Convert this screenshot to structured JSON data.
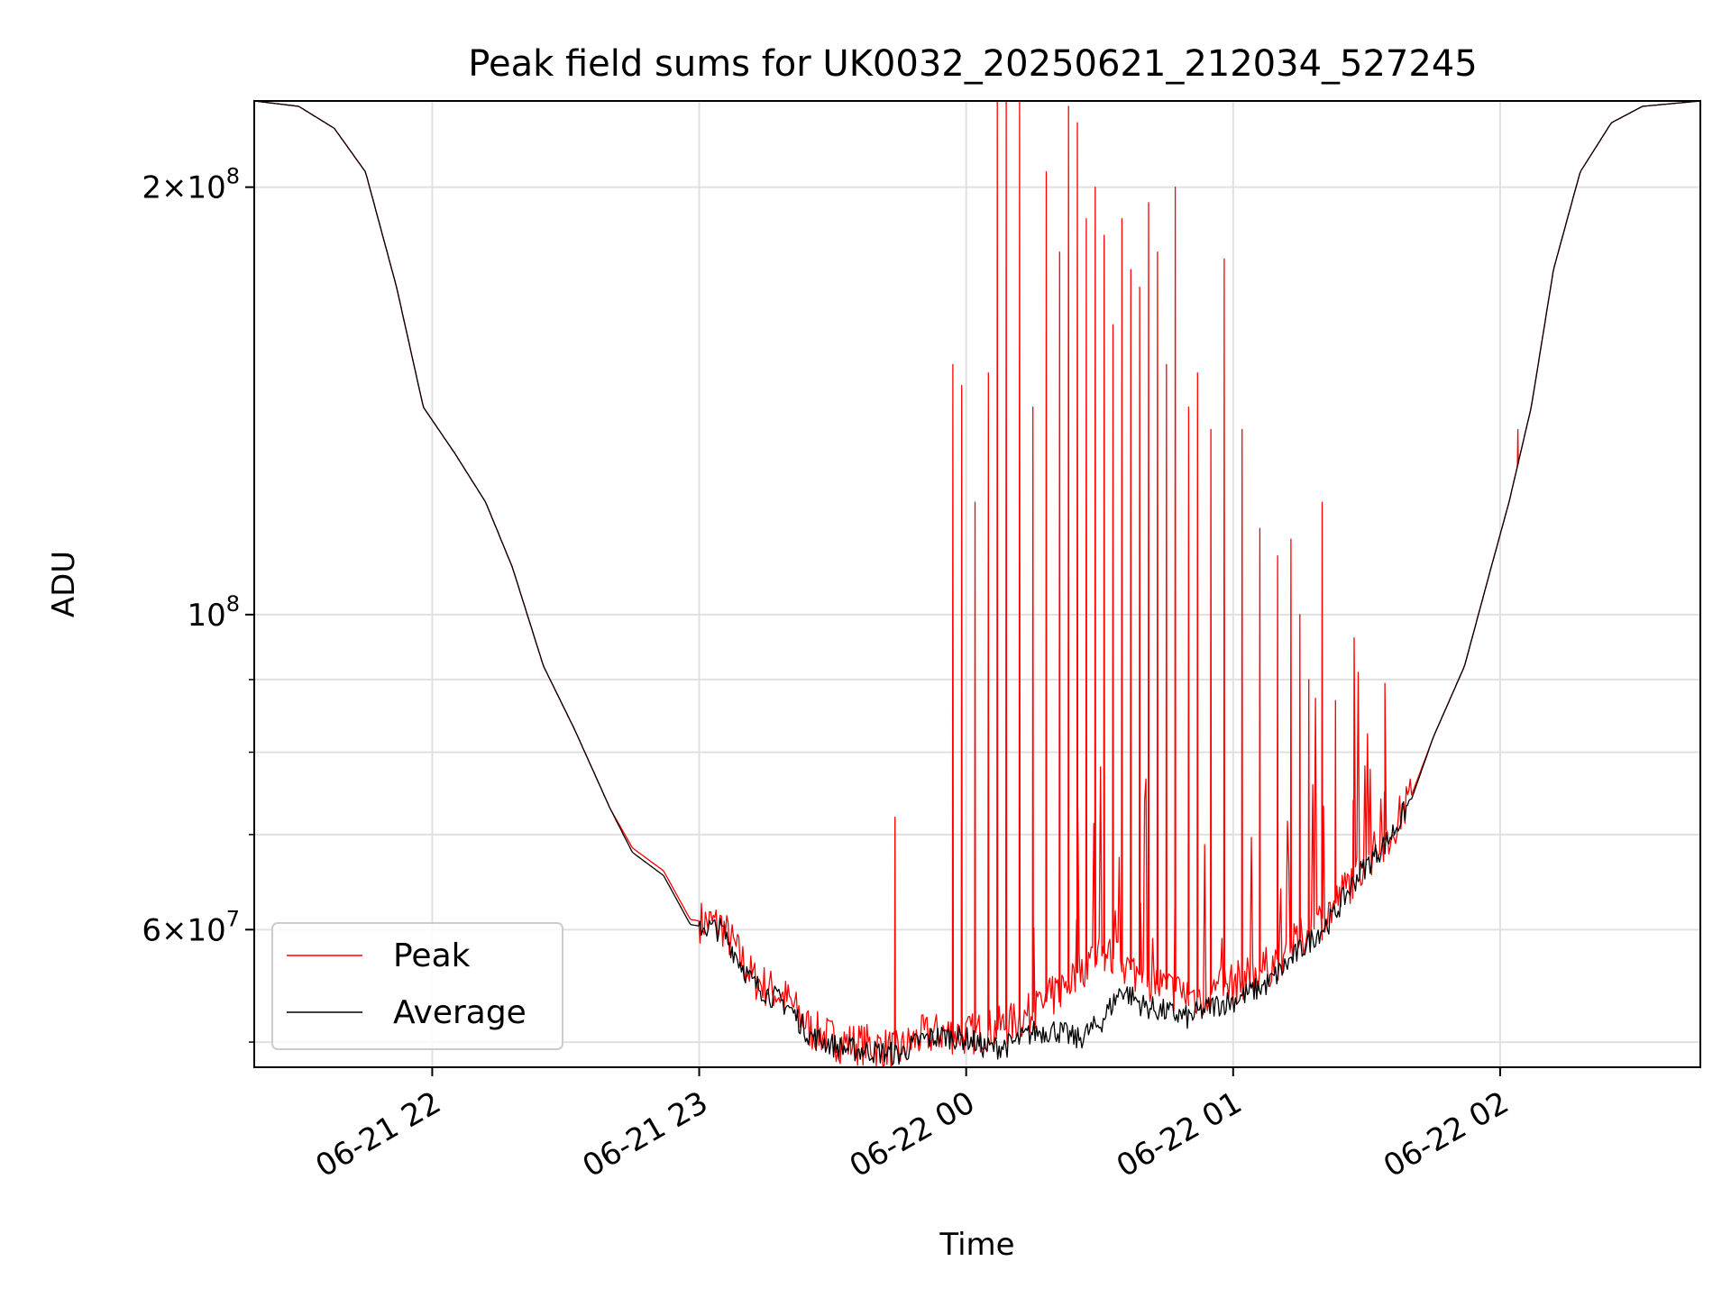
{
  "chart_data": {
    "type": "line",
    "title": "Peak field sums for UK0032_20250621_212034_527245",
    "xlabel": "Time",
    "ylabel": "ADU",
    "x_axis": {
      "type": "time",
      "range": [
        "2025-06-21 21:20",
        "2025-06-22 02:45"
      ],
      "ticks": [
        {
          "value": "2025-06-21 22:00",
          "label": "06-21 22"
        },
        {
          "value": "2025-06-21 23:00",
          "label": "06-21 23"
        },
        {
          "value": "2025-06-22 00:00",
          "label": "06-22 00"
        },
        {
          "value": "2025-06-22 01:00",
          "label": "06-22 01"
        },
        {
          "value": "2025-06-22 02:00",
          "label": "06-22 02"
        }
      ]
    },
    "y_axis": {
      "scale": "log",
      "ylim": [
        48000000,
        230000000
      ],
      "major_ticks": [
        {
          "value": 60000000,
          "label_base": "6×10",
          "label_exp": "7"
        },
        {
          "value": 100000000,
          "label_base": "10",
          "label_exp": "8"
        },
        {
          "value": 200000000,
          "label_base": "2×10",
          "label_exp": "8"
        }
      ],
      "minor_ticks": [
        50000000,
        70000000,
        80000000,
        90000000
      ]
    },
    "grid": true,
    "legend": {
      "placement": "lower-left"
    },
    "series": [
      {
        "name": "Peak",
        "color": "#ff0000",
        "anchors": [
          [
            "2025-06-21 21:20",
            230000000
          ],
          [
            "2025-06-21 21:30",
            228000000
          ],
          [
            "2025-06-21 21:38",
            220000000
          ],
          [
            "2025-06-21 21:45",
            205000000
          ],
          [
            "2025-06-21 21:52",
            170000000
          ],
          [
            "2025-06-21 21:58",
            140000000
          ],
          [
            "2025-06-21 22:05",
            130000000
          ],
          [
            "2025-06-21 22:12",
            120000000
          ],
          [
            "2025-06-21 22:18",
            108000000
          ],
          [
            "2025-06-21 22:25",
            92000000
          ],
          [
            "2025-06-21 22:32",
            83000000
          ],
          [
            "2025-06-21 22:40",
            73000000
          ],
          [
            "2025-06-21 22:45",
            68500000
          ],
          [
            "2025-06-21 22:52",
            66000000
          ],
          [
            "2025-06-21 22:58",
            61000000
          ],
          [
            "2025-06-21 23:05",
            60500000
          ],
          [
            "2025-06-21 23:12",
            55500000
          ],
          [
            "2025-06-21 23:20",
            53500000
          ],
          [
            "2025-06-21 23:25",
            51000000
          ],
          [
            "2025-06-21 23:32",
            50000000
          ],
          [
            "2025-06-21 23:38",
            49800000
          ],
          [
            "2025-06-21 23:45",
            49300000
          ],
          [
            "2025-06-21 23:50",
            50500000
          ],
          [
            "2025-06-21 23:55",
            50800000
          ],
          [
            "2025-06-22 00:00",
            50600000
          ],
          [
            "2025-06-22 00:05",
            51000000
          ],
          [
            "2025-06-22 00:10",
            51500000
          ],
          [
            "2025-06-22 00:15",
            52500000
          ],
          [
            "2025-06-22 00:20",
            54000000
          ],
          [
            "2025-06-22 00:30",
            58000000
          ],
          [
            "2025-06-22 00:38",
            56000000
          ],
          [
            "2025-06-22 00:45",
            54500000
          ],
          [
            "2025-06-22 00:52",
            53800000
          ],
          [
            "2025-06-22 01:00",
            55000000
          ],
          [
            "2025-06-22 01:08",
            56500000
          ],
          [
            "2025-06-22 01:15",
            59000000
          ],
          [
            "2025-06-22 01:22",
            62000000
          ],
          [
            "2025-06-22 01:28",
            66000000
          ],
          [
            "2025-06-22 01:35",
            70000000
          ],
          [
            "2025-06-22 01:40",
            74500000
          ],
          [
            "2025-06-22 01:45",
            82000000
          ],
          [
            "2025-06-22 01:52",
            92000000
          ],
          [
            "2025-06-22 01:58",
            108000000
          ],
          [
            "2025-06-22 02:02",
            120000000
          ],
          [
            "2025-06-22 02:07",
            140000000
          ],
          [
            "2025-06-22 02:12",
            175000000
          ],
          [
            "2025-06-22 02:18",
            205000000
          ],
          [
            "2025-06-22 02:25",
            222000000
          ],
          [
            "2025-06-22 02:32",
            228000000
          ],
          [
            "2025-06-22 02:45",
            230000000
          ]
        ],
        "spikes": [
          [
            "2025-06-21 23:44",
            72000000
          ],
          [
            "2025-06-21 23:57",
            150000000
          ],
          [
            "2025-06-21 23:59",
            145000000
          ],
          [
            "2025-06-22 00:02",
            120000000
          ],
          [
            "2025-06-22 00:05",
            148000000
          ],
          [
            "2025-06-22 00:07",
            230000000
          ],
          [
            "2025-06-22 00:09",
            230000000
          ],
          [
            "2025-06-22 00:12",
            230000000
          ],
          [
            "2025-06-22 00:15",
            140000000
          ],
          [
            "2025-06-22 00:18",
            205000000
          ],
          [
            "2025-06-22 00:21",
            180000000
          ],
          [
            "2025-06-22 00:23",
            228000000
          ],
          [
            "2025-06-22 00:25",
            222000000
          ],
          [
            "2025-06-22 00:27",
            190000000
          ],
          [
            "2025-06-22 00:29",
            200000000
          ],
          [
            "2025-06-22 00:31",
            185000000
          ],
          [
            "2025-06-22 00:33",
            160000000
          ],
          [
            "2025-06-22 00:35",
            190000000
          ],
          [
            "2025-06-22 00:37",
            175000000
          ],
          [
            "2025-06-22 00:39",
            170000000
          ],
          [
            "2025-06-22 00:41",
            195000000
          ],
          [
            "2025-06-22 00:43",
            180000000
          ],
          [
            "2025-06-22 00:45",
            150000000
          ],
          [
            "2025-06-22 00:47",
            200000000
          ],
          [
            "2025-06-22 00:50",
            140000000
          ],
          [
            "2025-06-22 00:52",
            148000000
          ],
          [
            "2025-06-22 00:55",
            135000000
          ],
          [
            "2025-06-22 00:58",
            178000000
          ],
          [
            "2025-06-22 01:02",
            135000000
          ],
          [
            "2025-06-22 01:06",
            115000000
          ],
          [
            "2025-06-22 01:10",
            110000000
          ],
          [
            "2025-06-22 01:13",
            113000000
          ],
          [
            "2025-06-22 01:15",
            100000000
          ],
          [
            "2025-06-22 01:17",
            90000000
          ],
          [
            "2025-06-22 01:20",
            120000000
          ],
          [
            "2025-06-22 01:23",
            87000000
          ],
          [
            "2025-06-22 01:27",
            74000000
          ],
          [
            "2025-06-22 01:34",
            75000000
          ],
          [
            "2025-06-22 02:04",
            135000000
          ]
        ]
      },
      {
        "name": "Average",
        "color": "#000000",
        "anchors": [
          [
            "2025-06-21 21:20",
            230000000
          ],
          [
            "2025-06-21 21:30",
            228000000
          ],
          [
            "2025-06-21 21:38",
            220000000
          ],
          [
            "2025-06-21 21:45",
            205000000
          ],
          [
            "2025-06-21 21:52",
            170000000
          ],
          [
            "2025-06-21 21:58",
            140000000
          ],
          [
            "2025-06-21 22:05",
            130000000
          ],
          [
            "2025-06-21 22:12",
            120000000
          ],
          [
            "2025-06-21 22:18",
            108000000
          ],
          [
            "2025-06-21 22:25",
            92000000
          ],
          [
            "2025-06-21 22:32",
            83000000
          ],
          [
            "2025-06-21 22:40",
            73000000
          ],
          [
            "2025-06-21 22:45",
            68000000
          ],
          [
            "2025-06-21 22:52",
            65500000
          ],
          [
            "2025-06-21 22:58",
            60500000
          ],
          [
            "2025-06-21 23:05",
            60000000
          ],
          [
            "2025-06-21 23:12",
            55000000
          ],
          [
            "2025-06-21 23:20",
            53000000
          ],
          [
            "2025-06-21 23:25",
            50500000
          ],
          [
            "2025-06-21 23:32",
            49500000
          ],
          [
            "2025-06-21 23:38",
            49300000
          ],
          [
            "2025-06-21 23:45",
            49000000
          ],
          [
            "2025-06-21 23:50",
            50200000
          ],
          [
            "2025-06-21 23:55",
            50500000
          ],
          [
            "2025-06-22 00:00",
            50300000
          ],
          [
            "2025-06-22 00:05",
            49500000
          ],
          [
            "2025-06-22 00:10",
            49800000
          ],
          [
            "2025-06-22 00:15",
            50800000
          ],
          [
            "2025-06-22 00:20",
            51000000
          ],
          [
            "2025-06-22 00:25",
            50200000
          ],
          [
            "2025-06-22 00:30",
            51500000
          ],
          [
            "2025-06-22 00:35",
            54500000
          ],
          [
            "2025-06-22 00:40",
            53000000
          ],
          [
            "2025-06-22 00:45",
            52500000
          ],
          [
            "2025-06-22 00:50",
            52000000
          ],
          [
            "2025-06-22 00:55",
            53000000
          ],
          [
            "2025-06-22 01:00",
            53500000
          ],
          [
            "2025-06-22 01:08",
            55000000
          ],
          [
            "2025-06-22 01:15",
            58000000
          ],
          [
            "2025-06-22 01:22",
            61000000
          ],
          [
            "2025-06-22 01:28",
            65500000
          ],
          [
            "2025-06-22 01:35",
            69500000
          ],
          [
            "2025-06-22 01:40",
            74000000
          ],
          [
            "2025-06-22 01:45",
            82000000
          ],
          [
            "2025-06-22 01:52",
            92000000
          ],
          [
            "2025-06-22 01:58",
            108000000
          ],
          [
            "2025-06-22 02:02",
            120000000
          ],
          [
            "2025-06-22 02:07",
            140000000
          ],
          [
            "2025-06-22 02:12",
            175000000
          ],
          [
            "2025-06-22 02:18",
            205000000
          ],
          [
            "2025-06-22 02:25",
            222000000
          ],
          [
            "2025-06-22 02:32",
            228000000
          ],
          [
            "2025-06-22 02:45",
            230000000
          ]
        ]
      }
    ]
  }
}
